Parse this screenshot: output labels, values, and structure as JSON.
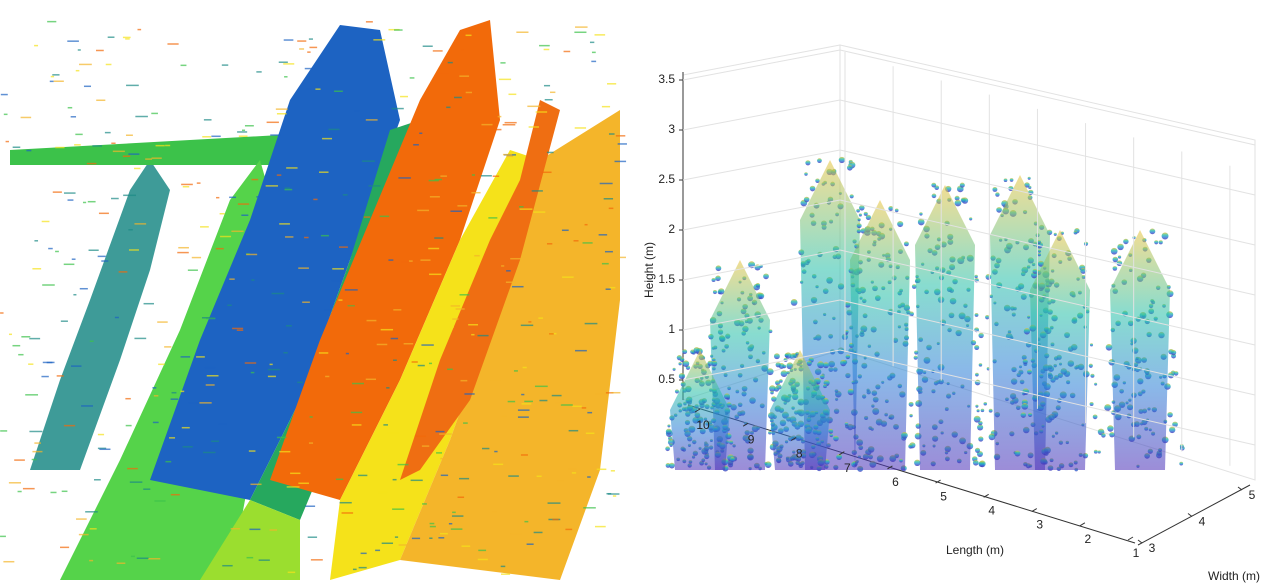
{
  "right_plot": {
    "z_label": "Height (m)",
    "x_label": "Length (m)",
    "y_label": "Width (m)",
    "zticks": [
      0.5,
      1,
      1.5,
      2,
      2.5,
      3,
      3.5
    ],
    "xticks": [
      1,
      2,
      3,
      4,
      5,
      6,
      7,
      8,
      9,
      10
    ],
    "yticks": [
      3,
      4,
      5
    ]
  }
}
